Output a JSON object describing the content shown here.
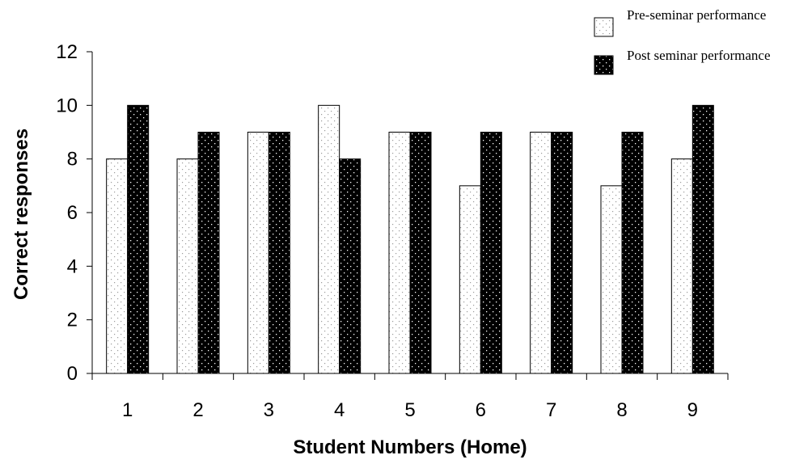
{
  "chart_data": {
    "type": "bar",
    "categories": [
      "1",
      "2",
      "3",
      "4",
      "5",
      "6",
      "7",
      "8",
      "9"
    ],
    "series": [
      {
        "name": "Pre-seminar performance",
        "values": [
          8,
          8,
          9,
          10,
          9,
          7,
          9,
          7,
          8
        ],
        "pattern": "light-dotted"
      },
      {
        "name": "Post seminar performance",
        "values": [
          10,
          9,
          9,
          8,
          9,
          9,
          9,
          9,
          10
        ],
        "pattern": "dark-dotted"
      }
    ],
    "title": "",
    "xlabel": "Student Numbers (Home)",
    "ylabel": "Correct responses",
    "ylim": [
      0,
      12
    ],
    "yticks": [
      0,
      2,
      4,
      6,
      8,
      10,
      12
    ],
    "grid": false,
    "legend": "top-right",
    "colors": {
      "light_fill": "#ffffff",
      "light_dot": "#9a9a9a",
      "dark_fill": "#000000",
      "dark_dot": "#ffffff",
      "axis": "#000000"
    }
  }
}
